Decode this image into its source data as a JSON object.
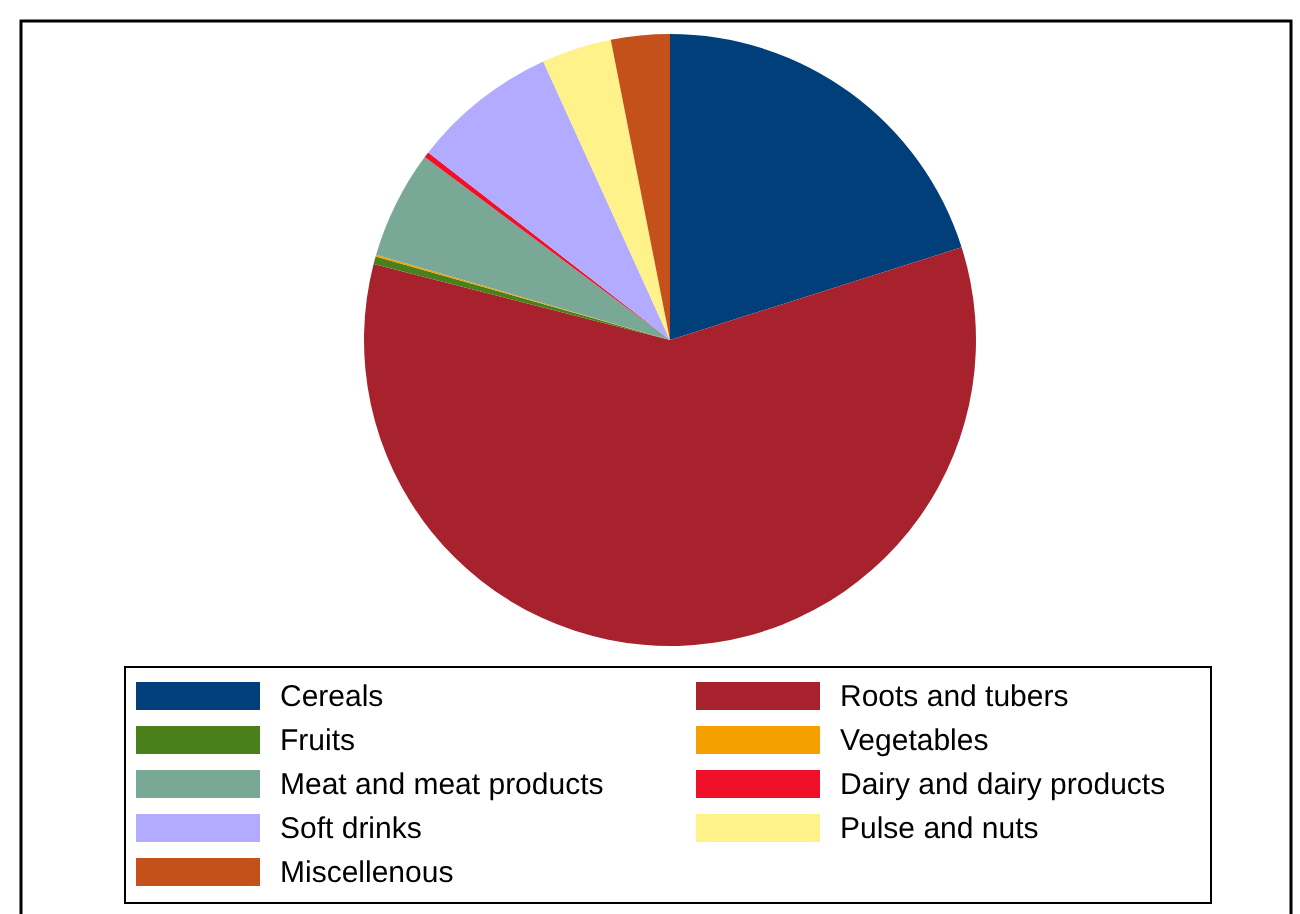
{
  "chart_data": {
    "type": "pie",
    "categories": [
      "Cereals",
      "Roots and tubers",
      "Fruits",
      "Vegetables",
      "Meat and meat products",
      "Dairy and dairy products",
      "Soft drinks",
      "Pulse and nuts",
      "Miscellenous"
    ],
    "values": [
      20.1,
      58.9,
      0.4,
      0.1,
      5.7,
      0.3,
      7.7,
      3.7,
      3.1
    ],
    "colors": [
      "#003f7a",
      "#a8222d",
      "#4a801c",
      "#f5a000",
      "#7aa896",
      "#f0102a",
      "#b3abff",
      "#fff28a",
      "#c4501a"
    ],
    "legend": "bottom"
  }
}
